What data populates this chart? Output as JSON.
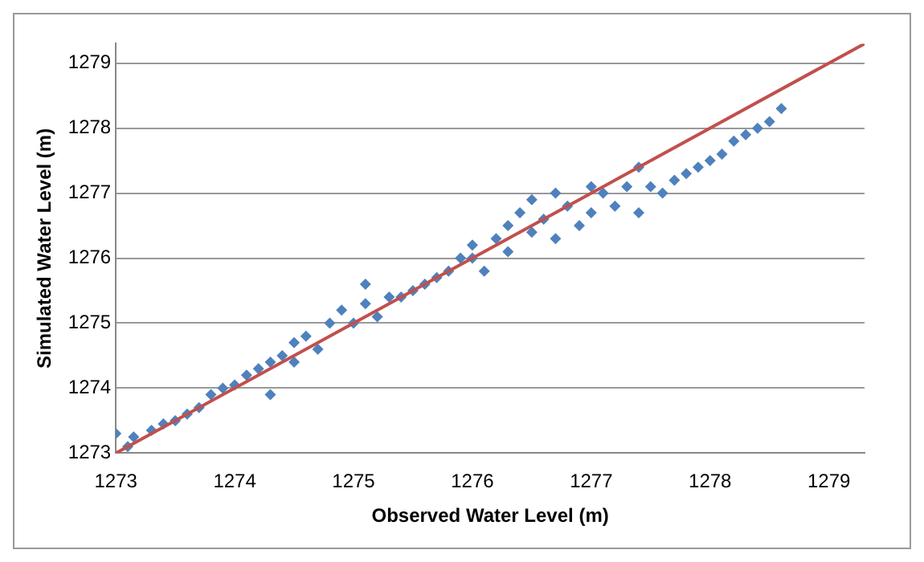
{
  "chart_data": {
    "type": "scatter",
    "xlabel": "Observed Water Level (m)",
    "ylabel": "Simulated Water Level (m)",
    "xlim": [
      1273,
      1279.3
    ],
    "ylim": [
      1273,
      1279.3
    ],
    "xticks": [
      1273,
      1274,
      1275,
      1276,
      1277,
      1278,
      1279
    ],
    "yticks": [
      1273,
      1274,
      1275,
      1276,
      1277,
      1278,
      1279
    ],
    "grid": "y",
    "legend": false,
    "series": [
      {
        "marker": "diamond",
        "color": "#4f81bd",
        "x": [
          1273.0,
          1273.1,
          1273.15,
          1273.3,
          1273.4,
          1273.5,
          1273.6,
          1273.7,
          1273.8,
          1273.9,
          1274.0,
          1274.1,
          1274.2,
          1274.3,
          1274.3,
          1274.4,
          1274.5,
          1274.5,
          1274.6,
          1274.7,
          1274.8,
          1274.9,
          1275.0,
          1275.1,
          1275.1,
          1275.2,
          1275.3,
          1275.4,
          1275.5,
          1275.6,
          1275.7,
          1275.8,
          1275.9,
          1276.0,
          1276.0,
          1276.1,
          1276.2,
          1276.3,
          1276.3,
          1276.4,
          1276.5,
          1276.5,
          1276.6,
          1276.7,
          1276.7,
          1276.8,
          1276.9,
          1277.0,
          1277.0,
          1277.1,
          1277.2,
          1277.3,
          1277.4,
          1277.4,
          1277.5,
          1277.6,
          1277.7,
          1277.8,
          1277.9,
          1278.0,
          1278.1,
          1278.2,
          1278.3,
          1278.4,
          1278.5,
          1278.6
        ],
        "values": [
          1273.3,
          1273.1,
          1273.25,
          1273.35,
          1273.45,
          1273.5,
          1273.6,
          1273.7,
          1273.9,
          1274.0,
          1274.05,
          1274.2,
          1274.3,
          1274.4,
          1273.9,
          1274.5,
          1274.4,
          1274.7,
          1274.8,
          1274.6,
          1275.0,
          1275.2,
          1275.0,
          1275.3,
          1275.6,
          1275.1,
          1275.4,
          1275.4,
          1275.5,
          1275.6,
          1275.7,
          1275.8,
          1276.0,
          1276.0,
          1276.2,
          1275.8,
          1276.3,
          1276.5,
          1276.1,
          1276.7,
          1276.4,
          1276.9,
          1276.6,
          1276.3,
          1277.0,
          1276.8,
          1276.5,
          1277.1,
          1276.7,
          1277.0,
          1276.8,
          1277.1,
          1277.4,
          1276.7,
          1277.1,
          1277.0,
          1277.2,
          1277.3,
          1277.4,
          1277.5,
          1277.6,
          1277.8,
          1277.9,
          1278.0,
          1278.1,
          1278.3
        ]
      },
      {
        "type": "line",
        "marker": "none",
        "color": "#c0504d",
        "x": [
          1273,
          1279.3
        ],
        "values": [
          1273,
          1279.3
        ]
      }
    ]
  }
}
